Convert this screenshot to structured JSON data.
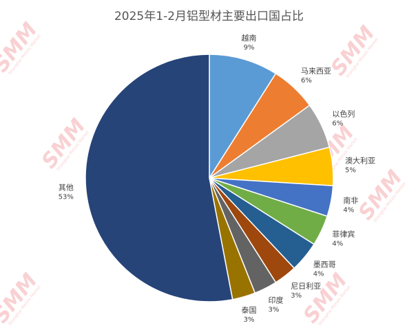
{
  "chart_data": {
    "type": "pie",
    "title": "2025年1-2月铝型材主要出口国占比",
    "start_angle_deg": 0,
    "direction": "clockwise",
    "slices": [
      {
        "label": "越南",
        "value": 9,
        "value_label": "9%",
        "color": "#5B9BD5"
      },
      {
        "label": "马来西亚",
        "value": 6,
        "value_label": "6%",
        "color": "#ED7D31"
      },
      {
        "label": "以色列",
        "value": 6,
        "value_label": "6%",
        "color": "#A5A5A5"
      },
      {
        "label": "澳大利亚",
        "value": 5,
        "value_label": "5%",
        "color": "#FFC000"
      },
      {
        "label": "南非",
        "value": 4,
        "value_label": "4%",
        "color": "#4472C4"
      },
      {
        "label": "菲律宾",
        "value": 4,
        "value_label": "4%",
        "color": "#70AD47"
      },
      {
        "label": "墨西哥",
        "value": 4,
        "value_label": "4%",
        "color": "#255E91"
      },
      {
        "label": "尼日利亚",
        "value": 3,
        "value_label": "3%",
        "color": "#9E480E"
      },
      {
        "label": "印度",
        "value": 3,
        "value_label": "3%",
        "color": "#636363"
      },
      {
        "label": "泰国",
        "value": 3,
        "value_label": "3%",
        "color": "#997300"
      },
      {
        "label": "其他",
        "value": 53,
        "value_label": "53%",
        "color": "#264478"
      }
    ]
  },
  "watermark": {
    "logo_text": "SMM",
    "sub_text": "Shanghai Metals Market",
    "color": "#E8333A"
  }
}
